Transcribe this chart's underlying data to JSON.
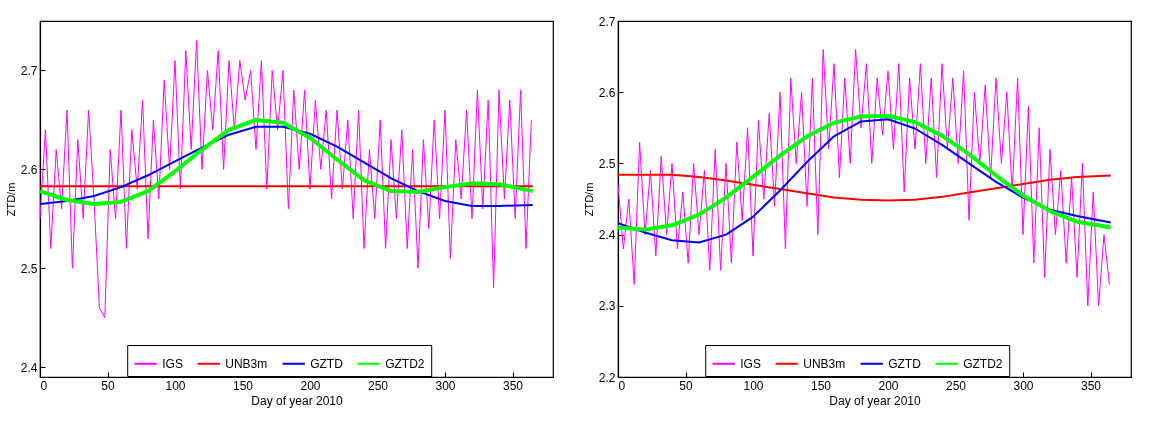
{
  "chart_data": [
    {
      "type": "line",
      "xlabel": "Day of year 2010",
      "ylabel": "ZTD/m",
      "xlim": [
        0,
        380
      ],
      "xticks": [
        0,
        50,
        100,
        150,
        200,
        250,
        300,
        350
      ],
      "ylim": [
        2.39,
        2.75
      ],
      "yticks": [
        2.4,
        2.5,
        2.6,
        2.7
      ],
      "grid": false,
      "legend": "bottom",
      "marker": "none",
      "line_style": "solid",
      "series": [
        {
          "name": "IGS",
          "color": "#ff00ff",
          "x": [
            0,
            4,
            8,
            12,
            16,
            20,
            24,
            28,
            32,
            36,
            40,
            44,
            48,
            52,
            56,
            60,
            64,
            68,
            72,
            76,
            80,
            84,
            88,
            92,
            96,
            100,
            104,
            108,
            112,
            116,
            120,
            124,
            128,
            132,
            136,
            140,
            144,
            148,
            152,
            156,
            160,
            164,
            168,
            172,
            176,
            180,
            184,
            188,
            192,
            196,
            200,
            204,
            208,
            212,
            216,
            220,
            224,
            228,
            232,
            236,
            240,
            244,
            248,
            252,
            256,
            260,
            264,
            268,
            272,
            276,
            280,
            284,
            288,
            292,
            296,
            300,
            304,
            308,
            312,
            316,
            320,
            324,
            328,
            332,
            336,
            340,
            344,
            348,
            352,
            356,
            360,
            364
          ],
          "values": [
            2.55,
            2.64,
            2.52,
            2.62,
            2.56,
            2.66,
            2.5,
            2.63,
            2.55,
            2.66,
            2.57,
            2.46,
            2.45,
            2.62,
            2.55,
            2.66,
            2.52,
            2.64,
            2.58,
            2.67,
            2.53,
            2.65,
            2.57,
            2.69,
            2.6,
            2.71,
            2.58,
            2.72,
            2.62,
            2.73,
            2.6,
            2.7,
            2.64,
            2.72,
            2.6,
            2.71,
            2.64,
            2.71,
            2.67,
            2.7,
            2.62,
            2.71,
            2.58,
            2.7,
            2.64,
            2.7,
            2.56,
            2.68,
            2.6,
            2.68,
            2.58,
            2.67,
            2.6,
            2.66,
            2.57,
            2.66,
            2.58,
            2.65,
            2.55,
            2.66,
            2.52,
            2.62,
            2.55,
            2.65,
            2.52,
            2.63,
            2.55,
            2.64,
            2.52,
            2.62,
            2.5,
            2.63,
            2.54,
            2.65,
            2.55,
            2.66,
            2.51,
            2.63,
            2.57,
            2.66,
            2.55,
            2.68,
            2.56,
            2.67,
            2.48,
            2.68,
            2.57,
            2.67,
            2.55,
            2.68,
            2.52,
            2.65
          ]
        },
        {
          "name": "UNB3m",
          "color": "#ff0000",
          "x": [
            0,
            365
          ],
          "values": [
            2.583,
            2.583
          ]
        },
        {
          "name": "GZTD",
          "color": "#0000ff",
          "x": [
            0,
            20,
            40,
            60,
            80,
            100,
            120,
            140,
            160,
            180,
            200,
            220,
            240,
            260,
            280,
            300,
            320,
            340,
            365
          ],
          "values": [
            2.565,
            2.568,
            2.573,
            2.582,
            2.594,
            2.608,
            2.622,
            2.635,
            2.643,
            2.643,
            2.636,
            2.623,
            2.607,
            2.591,
            2.578,
            2.568,
            2.563,
            2.563,
            2.564
          ]
        },
        {
          "name": "GZTD2",
          "color": "#00ff00",
          "x": [
            0,
            20,
            40,
            60,
            80,
            100,
            120,
            140,
            160,
            180,
            200,
            220,
            240,
            260,
            280,
            300,
            320,
            340,
            365
          ],
          "values": [
            2.578,
            2.569,
            2.565,
            2.567,
            2.578,
            2.598,
            2.62,
            2.64,
            2.65,
            2.647,
            2.632,
            2.61,
            2.589,
            2.578,
            2.577,
            2.582,
            2.586,
            2.585,
            2.578
          ]
        }
      ]
    },
    {
      "type": "line",
      "xlabel": "Day of year 2010",
      "ylabel": "ZTD/m",
      "xlim": [
        0,
        380
      ],
      "xticks": [
        0,
        50,
        100,
        150,
        200,
        250,
        300,
        350
      ],
      "ylim": [
        2.2,
        2.7
      ],
      "yticks": [
        2.2,
        2.3,
        2.4,
        2.5,
        2.6,
        2.7
      ],
      "grid": false,
      "legend": "bottom",
      "marker": "none",
      "line_style": "solid",
      "series": [
        {
          "name": "IGS",
          "color": "#ff00ff",
          "x": [
            0,
            4,
            8,
            12,
            16,
            20,
            24,
            28,
            32,
            36,
            40,
            44,
            48,
            52,
            56,
            60,
            64,
            68,
            72,
            76,
            80,
            84,
            88,
            92,
            96,
            100,
            104,
            108,
            112,
            116,
            120,
            124,
            128,
            132,
            136,
            140,
            144,
            148,
            152,
            156,
            160,
            164,
            168,
            172,
            176,
            180,
            184,
            188,
            192,
            196,
            200,
            204,
            208,
            212,
            216,
            220,
            224,
            228,
            232,
            236,
            240,
            244,
            248,
            252,
            256,
            260,
            264,
            268,
            272,
            276,
            280,
            284,
            288,
            292,
            296,
            300,
            304,
            308,
            312,
            316,
            320,
            324,
            328,
            332,
            336,
            340,
            344,
            348,
            352,
            356,
            360,
            364
          ],
          "values": [
            2.47,
            2.38,
            2.45,
            2.33,
            2.53,
            2.4,
            2.49,
            2.37,
            2.51,
            2.4,
            2.5,
            2.38,
            2.46,
            2.36,
            2.5,
            2.4,
            2.49,
            2.35,
            2.52,
            2.35,
            2.5,
            2.36,
            2.53,
            2.42,
            2.55,
            2.37,
            2.56,
            2.45,
            2.57,
            2.44,
            2.6,
            2.38,
            2.62,
            2.5,
            2.6,
            2.44,
            2.62,
            2.4,
            2.66,
            2.52,
            2.64,
            2.48,
            2.62,
            2.5,
            2.66,
            2.55,
            2.64,
            2.5,
            2.62,
            2.54,
            2.63,
            2.52,
            2.64,
            2.46,
            2.62,
            2.52,
            2.64,
            2.5,
            2.62,
            2.48,
            2.64,
            2.52,
            2.62,
            2.5,
            2.63,
            2.42,
            2.6,
            2.5,
            2.61,
            2.48,
            2.62,
            2.5,
            2.6,
            2.46,
            2.62,
            2.4,
            2.58,
            2.36,
            2.55,
            2.34,
            2.52,
            2.4,
            2.49,
            2.36,
            2.48,
            2.34,
            2.5,
            2.3,
            2.46,
            2.3,
            2.4,
            2.33
          ]
        },
        {
          "name": "UNB3m",
          "color": "#ff0000",
          "x": [
            0,
            20,
            40,
            60,
            80,
            100,
            120,
            140,
            160,
            180,
            200,
            220,
            240,
            260,
            280,
            300,
            320,
            340,
            365
          ],
          "values": [
            2.484,
            2.484,
            2.484,
            2.481,
            2.476,
            2.47,
            2.464,
            2.458,
            2.452,
            2.449,
            2.448,
            2.449,
            2.453,
            2.459,
            2.465,
            2.471,
            2.477,
            2.481,
            2.483
          ]
        },
        {
          "name": "GZTD",
          "color": "#0000ff",
          "x": [
            0,
            20,
            40,
            60,
            80,
            100,
            120,
            140,
            160,
            180,
            200,
            220,
            240,
            260,
            280,
            300,
            320,
            340,
            365
          ],
          "values": [
            2.416,
            2.403,
            2.392,
            2.389,
            2.4,
            2.425,
            2.462,
            2.502,
            2.538,
            2.559,
            2.562,
            2.549,
            2.526,
            2.5,
            2.474,
            2.452,
            2.435,
            2.426,
            2.417
          ]
        },
        {
          "name": "GZTD2",
          "color": "#00ff00",
          "x": [
            0,
            20,
            40,
            60,
            80,
            100,
            120,
            140,
            160,
            180,
            200,
            220,
            240,
            260,
            280,
            300,
            320,
            340,
            365
          ],
          "values": [
            2.41,
            2.407,
            2.413,
            2.428,
            2.452,
            2.481,
            2.511,
            2.538,
            2.557,
            2.566,
            2.567,
            2.558,
            2.539,
            2.513,
            2.483,
            2.455,
            2.433,
            2.418,
            2.41
          ]
        }
      ]
    }
  ]
}
